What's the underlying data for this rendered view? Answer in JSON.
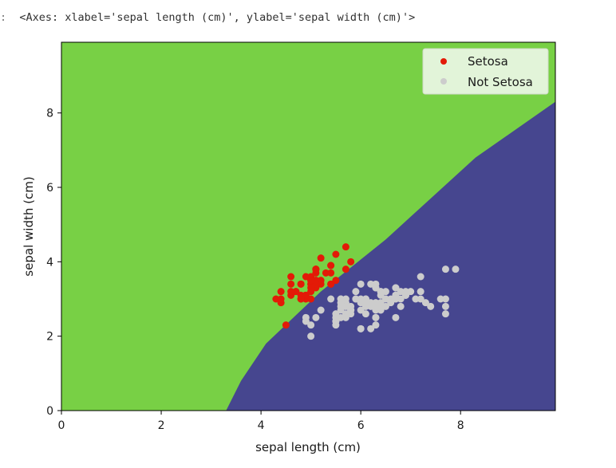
{
  "output_prompt": ":",
  "output_text": "<Axes: xlabel='sepal length (cm)', ylabel='sepal width (cm)'>",
  "colors": {
    "setosa_region": "#78d045",
    "not_setosa_region": "#46468f",
    "setosa_points": "#e31a07",
    "not_setosa_points": "#cccccc",
    "legend_bg": "#e2f4d9"
  },
  "chart_data": {
    "type": "scatter",
    "xlabel": "sepal length (cm)",
    "ylabel": "sepal width (cm)",
    "xlim": [
      0,
      9.9
    ],
    "ylim": [
      0,
      9.9
    ],
    "x_ticks": [
      0,
      2,
      4,
      6,
      8
    ],
    "y_ticks": [
      0,
      2,
      4,
      6,
      8
    ],
    "grid": false,
    "legend_position": "top-right",
    "decision_boundary": {
      "note": "background filled with two classifier regions",
      "line": [
        [
          3.3,
          0
        ],
        [
          3.6,
          0.8
        ],
        [
          4.1,
          1.8
        ],
        [
          5.2,
          3.2
        ],
        [
          6.5,
          4.6
        ],
        [
          8.3,
          6.8
        ],
        [
          9.9,
          8.3
        ]
      ]
    },
    "series": [
      {
        "name": "Setosa",
        "points": [
          [
            5.1,
            3.5
          ],
          [
            4.9,
            3.0
          ],
          [
            4.7,
            3.2
          ],
          [
            4.6,
            3.1
          ],
          [
            5.0,
            3.6
          ],
          [
            5.4,
            3.9
          ],
          [
            4.6,
            3.4
          ],
          [
            5.0,
            3.4
          ],
          [
            4.4,
            2.9
          ],
          [
            4.9,
            3.1
          ],
          [
            5.4,
            3.7
          ],
          [
            4.8,
            3.4
          ],
          [
            4.8,
            3.0
          ],
          [
            4.3,
            3.0
          ],
          [
            5.8,
            4.0
          ],
          [
            5.7,
            4.4
          ],
          [
            5.4,
            3.9
          ],
          [
            5.1,
            3.5
          ],
          [
            5.7,
            3.8
          ],
          [
            5.1,
            3.8
          ],
          [
            5.4,
            3.4
          ],
          [
            5.1,
            3.7
          ],
          [
            4.6,
            3.6
          ],
          [
            5.1,
            3.3
          ],
          [
            4.8,
            3.4
          ],
          [
            5.0,
            3.0
          ],
          [
            5.0,
            3.4
          ],
          [
            5.2,
            3.5
          ],
          [
            5.2,
            3.4
          ],
          [
            4.7,
            3.2
          ],
          [
            4.8,
            3.1
          ],
          [
            5.4,
            3.4
          ],
          [
            5.2,
            4.1
          ],
          [
            5.5,
            4.2
          ],
          [
            4.9,
            3.1
          ],
          [
            5.0,
            3.2
          ],
          [
            5.5,
            3.5
          ],
          [
            4.9,
            3.6
          ],
          [
            4.4,
            3.0
          ],
          [
            5.1,
            3.4
          ],
          [
            5.0,
            3.5
          ],
          [
            4.5,
            2.3
          ],
          [
            4.4,
            3.2
          ],
          [
            5.0,
            3.5
          ],
          [
            5.1,
            3.8
          ],
          [
            4.8,
            3.0
          ],
          [
            5.1,
            3.8
          ],
          [
            4.6,
            3.2
          ],
          [
            5.3,
            3.7
          ],
          [
            5.0,
            3.3
          ]
        ]
      },
      {
        "name": "Not Setosa",
        "points": [
          [
            7.0,
            3.2
          ],
          [
            6.4,
            3.2
          ],
          [
            6.9,
            3.1
          ],
          [
            5.5,
            2.3
          ],
          [
            6.5,
            2.8
          ],
          [
            5.7,
            2.8
          ],
          [
            6.3,
            3.3
          ],
          [
            4.9,
            2.4
          ],
          [
            6.6,
            2.9
          ],
          [
            5.2,
            2.7
          ],
          [
            5.0,
            2.0
          ],
          [
            5.9,
            3.0
          ],
          [
            6.0,
            2.2
          ],
          [
            6.1,
            2.9
          ],
          [
            5.6,
            2.9
          ],
          [
            6.7,
            3.1
          ],
          [
            5.6,
            3.0
          ],
          [
            5.8,
            2.7
          ],
          [
            6.2,
            2.2
          ],
          [
            5.6,
            2.5
          ],
          [
            5.9,
            3.2
          ],
          [
            6.1,
            2.8
          ],
          [
            6.3,
            2.5
          ],
          [
            6.1,
            2.8
          ],
          [
            6.4,
            2.9
          ],
          [
            6.6,
            3.0
          ],
          [
            6.8,
            2.8
          ],
          [
            6.7,
            3.0
          ],
          [
            6.0,
            2.9
          ],
          [
            5.7,
            2.6
          ],
          [
            5.5,
            2.4
          ],
          [
            5.5,
            2.4
          ],
          [
            5.8,
            2.7
          ],
          [
            6.0,
            2.7
          ],
          [
            5.4,
            3.0
          ],
          [
            6.0,
            3.4
          ],
          [
            6.7,
            3.1
          ],
          [
            6.3,
            2.3
          ],
          [
            5.6,
            3.0
          ],
          [
            5.5,
            2.5
          ],
          [
            5.5,
            2.6
          ],
          [
            6.1,
            3.0
          ],
          [
            5.8,
            2.6
          ],
          [
            5.0,
            2.3
          ],
          [
            5.6,
            2.7
          ],
          [
            5.7,
            3.0
          ],
          [
            5.7,
            2.9
          ],
          [
            6.2,
            2.9
          ],
          [
            5.1,
            2.5
          ],
          [
            5.7,
            2.8
          ],
          [
            6.3,
            3.3
          ],
          [
            5.8,
            2.7
          ],
          [
            7.1,
            3.0
          ],
          [
            6.3,
            2.9
          ],
          [
            6.5,
            3.0
          ],
          [
            7.6,
            3.0
          ],
          [
            4.9,
            2.5
          ],
          [
            7.3,
            2.9
          ],
          [
            6.7,
            2.5
          ],
          [
            7.2,
            3.6
          ],
          [
            6.5,
            3.2
          ],
          [
            6.4,
            2.7
          ],
          [
            6.8,
            3.0
          ],
          [
            5.7,
            2.5
          ],
          [
            5.8,
            2.8
          ],
          [
            6.4,
            3.2
          ],
          [
            6.5,
            3.0
          ],
          [
            7.7,
            3.8
          ],
          [
            7.7,
            2.6
          ],
          [
            6.0,
            2.2
          ],
          [
            6.9,
            3.2
          ],
          [
            5.6,
            2.8
          ],
          [
            7.7,
            2.8
          ],
          [
            6.3,
            2.7
          ],
          [
            6.7,
            3.3
          ],
          [
            7.2,
            3.2
          ],
          [
            6.2,
            2.8
          ],
          [
            6.1,
            3.0
          ],
          [
            6.4,
            2.8
          ],
          [
            7.2,
            3.0
          ],
          [
            7.4,
            2.8
          ],
          [
            7.9,
            3.8
          ],
          [
            6.4,
            2.8
          ],
          [
            6.3,
            2.8
          ],
          [
            6.1,
            2.6
          ],
          [
            7.7,
            3.0
          ],
          [
            6.3,
            3.4
          ],
          [
            6.4,
            3.1
          ],
          [
            6.0,
            3.0
          ],
          [
            6.9,
            3.1
          ],
          [
            6.7,
            3.1
          ],
          [
            6.9,
            3.1
          ],
          [
            5.8,
            2.7
          ],
          [
            6.8,
            3.2
          ],
          [
            6.7,
            3.3
          ],
          [
            6.7,
            3.0
          ],
          [
            6.3,
            2.5
          ],
          [
            6.5,
            3.0
          ],
          [
            6.2,
            3.4
          ],
          [
            5.9,
            3.0
          ]
        ]
      }
    ]
  }
}
